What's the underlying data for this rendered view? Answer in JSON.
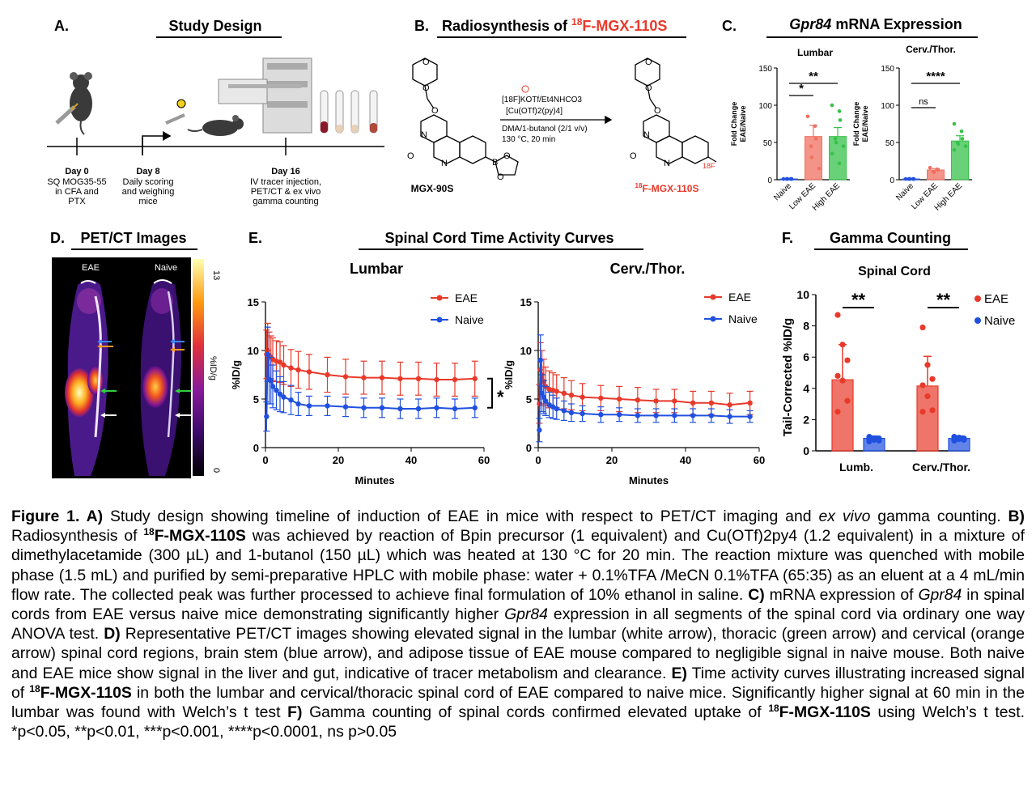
{
  "panelA": {
    "letter": "A.",
    "title": "Study Design",
    "day0": {
      "title": "Day 0",
      "lines": [
        "SQ MOG35-55",
        "in CFA and",
        "PTX"
      ]
    },
    "day8": {
      "title": "Day 8",
      "lines": [
        "Daily scoring",
        "and weighing",
        "mice"
      ]
    },
    "day16": {
      "title": "Day 16",
      "lines": [
        "IV tracer injection,",
        "PET/CT & ex vivo",
        "gamma counting"
      ]
    }
  },
  "panelB": {
    "letter": "B.",
    "title_prefix": "Radiosynthesis of ",
    "title_iso": "18",
    "title_suffix": "F-MGX-110S",
    "reagents_line1": "[18F]KOTf/Et4NHCO3",
    "reagents_line2": "[Cu(OTf)2(py)4]",
    "conditions_line1": "DMA/1-butanol (2/1 v/v)",
    "conditions_line2": "130 °C, 20 min",
    "precursor_label": "MGX-90S",
    "product_label": "F-MGX-110S",
    "product_iso": "18",
    "fluoro_label": "18F"
  },
  "panelC": {
    "letter": "C.",
    "title_gene": "Gpr84",
    "title_rest": " mRNA Expression",
    "ylabel_1": "Fold Change",
    "ylabel_2": "EAE/Naive",
    "yticks": [
      "0",
      "50",
      "100",
      "150"
    ],
    "categories": [
      "Naive",
      "Low EAE",
      "High EAE"
    ],
    "lumbar": {
      "subtitle": "Lumbar",
      "sig1": "*",
      "sig2": "**"
    },
    "cerv": {
      "subtitle": "Cerv./Thor.",
      "sig1": "ns",
      "sig2": "****"
    }
  },
  "panelD": {
    "letter": "D.",
    "title": "PET/CT Images",
    "label_eae": "EAE",
    "label_naive": "Naive",
    "scale_max": "13",
    "scale_min": "0",
    "scale_unit": "%ID/g"
  },
  "panelE": {
    "letter": "E.",
    "title": "Spinal Cord Time Activity Curves",
    "xlabel": "Minutes",
    "ylabel": "%ID/g",
    "xticks": [
      "0",
      "20",
      "40",
      "60"
    ],
    "yticks": [
      "0",
      "5",
      "10",
      "15"
    ],
    "legend_eae": "EAE",
    "legend_naive": "Naive",
    "lumbar_title": "Lumbar",
    "cerv_title": "Cerv./Thor.",
    "sig": "*"
  },
  "panelF": {
    "letter": "F.",
    "title": "Gamma Counting",
    "subtitle": "Spinal Cord",
    "ylabel": "Tail-Corrected %ID/g",
    "yticks": [
      "0",
      "2",
      "4",
      "6",
      "8",
      "10"
    ],
    "categories": [
      "Lumb.",
      "Cerv./Thor."
    ],
    "legend_eae": "EAE",
    "legend_naive": "Naive",
    "sig1": "**",
    "sig2": "**"
  },
  "colors": {
    "eae": "#e8392a",
    "naive": "#2050e0",
    "high_eae": "#37c24a",
    "low_eae": "#f07060"
  },
  "chart_data": [
    {
      "type": "bar",
      "panel": "C-lumbar",
      "title": "Lumbar",
      "ylabel": "Fold Change EAE/Naive",
      "categories": [
        "Naive",
        "Low EAE",
        "High EAE"
      ],
      "values": [
        1,
        58,
        58
      ],
      "errors": [
        0.5,
        15,
        12
      ],
      "ylim": [
        0,
        150
      ],
      "points": [
        [
          1,
          1,
          1,
          1,
          1
        ],
        [
          85,
          72,
          55,
          45,
          30,
          15
        ],
        [
          100,
          92,
          80,
          55,
          50,
          45,
          35,
          22
        ]
      ]
    },
    {
      "type": "bar",
      "panel": "C-cerv",
      "title": "Cerv./Thor.",
      "ylabel": "Fold Change EAE/Naive",
      "categories": [
        "Naive",
        "Low EAE",
        "High EAE"
      ],
      "values": [
        1,
        13,
        52
      ],
      "errors": [
        0.5,
        2,
        7
      ],
      "ylim": [
        0,
        150
      ],
      "points": [
        [
          1,
          1,
          1,
          1,
          1
        ],
        [
          16,
          14,
          13,
          11,
          10
        ],
        [
          75,
          65,
          55,
          50,
          48,
          45,
          40
        ]
      ]
    },
    {
      "type": "line",
      "panel": "E-lumbar",
      "title": "Lumbar",
      "xlabel": "Minutes",
      "ylabel": "%ID/g",
      "xlim": [
        0,
        60
      ],
      "ylim": [
        0,
        15
      ],
      "series": [
        {
          "name": "EAE",
          "x": [
            0.3,
            0.6,
            1,
            1.5,
            2,
            3,
            4,
            5,
            7,
            9,
            12,
            17,
            22,
            27,
            32,
            37,
            42,
            47,
            52,
            57.5
          ],
          "y": [
            9.6,
            10.0,
            9.5,
            9.3,
            9.1,
            8.9,
            8.8,
            8.5,
            8.2,
            8.0,
            7.8,
            7.5,
            7.3,
            7.2,
            7.2,
            7.1,
            7.1,
            7.0,
            7.0,
            7.1
          ],
          "err": [
            2.5,
            2.8,
            2.4,
            2.2,
            2.2,
            2.1,
            2.1,
            2.0,
            1.9,
            1.9,
            1.8,
            1.8,
            1.8,
            1.7,
            1.7,
            1.7,
            1.7,
            1.7,
            1.7,
            1.8
          ]
        },
        {
          "name": "Naive",
          "x": [
            0.3,
            0.6,
            1,
            1.5,
            2,
            3,
            4,
            5,
            7,
            9,
            12,
            17,
            22,
            27,
            32,
            37,
            42,
            47,
            52,
            57.5
          ],
          "y": [
            3.2,
            9.6,
            7.0,
            6.9,
            6.3,
            5.9,
            5.5,
            5.2,
            4.9,
            4.5,
            4.3,
            4.3,
            4.2,
            4.1,
            4.1,
            4.0,
            4.0,
            4.1,
            4.0,
            4.1
          ],
          "err": [
            1.5,
            2.8,
            2.5,
            2.4,
            2.2,
            2.0,
            1.8,
            1.6,
            1.5,
            1.2,
            1.0,
            1.0,
            1.0,
            1.0,
            1.0,
            1.0,
            1.0,
            1.0,
            1.0,
            1.0
          ]
        }
      ]
    },
    {
      "type": "line",
      "panel": "E-cerv",
      "title": "Cerv./Thor.",
      "xlabel": "Minutes",
      "ylabel": "%ID/g",
      "xlim": [
        0,
        60
      ],
      "ylim": [
        0,
        15
      ],
      "series": [
        {
          "name": "EAE",
          "x": [
            0.3,
            0.6,
            1,
            1.5,
            2,
            3,
            4,
            5,
            7,
            9,
            12,
            17,
            22,
            27,
            32,
            37,
            42,
            47,
            52,
            57.5
          ],
          "y": [
            4.5,
            8.0,
            7.5,
            6.8,
            6.3,
            6.0,
            5.9,
            5.8,
            5.6,
            5.4,
            5.2,
            5.1,
            5.0,
            4.9,
            4.8,
            4.8,
            4.6,
            4.6,
            4.4,
            4.6
          ],
          "err": [
            2.0,
            2.8,
            2.5,
            2.3,
            2.0,
            1.9,
            1.8,
            1.7,
            1.6,
            1.5,
            1.4,
            1.3,
            1.3,
            1.3,
            1.2,
            1.2,
            1.2,
            1.2,
            1.2,
            1.2
          ]
        },
        {
          "name": "Naive",
          "x": [
            0.3,
            0.6,
            1,
            1.5,
            2,
            3,
            4,
            5,
            7,
            9,
            12,
            17,
            22,
            27,
            32,
            37,
            42,
            47,
            52,
            57.5
          ],
          "y": [
            1.8,
            9.0,
            5.6,
            5.2,
            4.8,
            4.4,
            4.2,
            4.0,
            3.8,
            3.6,
            3.5,
            3.4,
            3.4,
            3.3,
            3.3,
            3.3,
            3.3,
            3.3,
            3.2,
            3.2
          ],
          "err": [
            1.2,
            2.6,
            1.9,
            1.7,
            1.5,
            1.3,
            1.2,
            1.1,
            1.0,
            0.9,
            0.8,
            0.8,
            0.7,
            0.7,
            0.7,
            0.7,
            0.7,
            0.7,
            0.7,
            0.6
          ]
        }
      ]
    },
    {
      "type": "bar",
      "panel": "F",
      "title": "Spinal Cord",
      "ylabel": "Tail-Corrected %ID/g",
      "categories": [
        "Lumb.",
        "Cerv./Thor."
      ],
      "ylim": [
        0,
        10
      ],
      "series": [
        {
          "name": "EAE",
          "values": [
            4.55,
            4.15
          ],
          "errors": [
            2.25,
            1.9
          ],
          "points": [
            [
              8.7,
              6.8,
              5.8,
              4.8,
              4.5,
              3.2,
              2.5
            ],
            [
              7.9,
              5.5,
              4.6,
              4.2,
              3.5,
              2.6,
              2.5
            ]
          ]
        },
        {
          "name": "Naive",
          "values": [
            0.8,
            0.8
          ],
          "errors": [
            0.15,
            0.15
          ],
          "points": [
            [
              0.9,
              0.8,
              0.8,
              0.75,
              0.7,
              0.65,
              0.6
            ],
            [
              0.9,
              0.85,
              0.8,
              0.8,
              0.75,
              0.7,
              0.65
            ]
          ]
        }
      ]
    }
  ],
  "caption": {
    "s1b": "Figure 1. A)",
    "s2": " Study design showing timeline of induction of EAE in mice with respect to PET/CT imaging and ",
    "s3i": "ex vivo",
    "s4": " gamma counting. ",
    "s5b": "B)",
    "s6": " Radiosynthesis of ",
    "s7sup": "18",
    "s8b": "F-MGX-110S",
    "s9": " was achieved by reaction of Bpin precursor (1 equivalent) and Cu(OTf)2py4 (1.2 equivalent) in a mixture of dimethylacetamide (300 µL) and 1-butanol (150 µL) which was heated at 130 °C for 20 min. The reaction mixture was quenched with mobile phase (1.5 mL) and purified by semi-preparative HPLC with mobile phase: water + 0.1%TFA /MeCN 0.1%TFA (65:35) as an eluent at a 4 mL/min flow rate. The collected peak was further processed to achieve final formulation of 10% ethanol in saline.  ",
    "s10b": "C)",
    "s11": " mRNA expression of ",
    "s12i": "Gpr84",
    "s13": " in spinal cords from EAE versus naive mice demonstrating significantly higher ",
    "s14i": "Gpr84",
    "s15": " expression in all segments of the spinal cord via ordinary one way ANOVA test. ",
    "s16b": "D)",
    "s17": " Representative PET/CT images showing elevated signal in the lumbar (white arrow), thoracic (green arrow) and cervical (orange arrow) spinal cord regions, brain stem (blue arrow), and adipose tissue of EAE mouse compared to negligible signal in naive mouse. Both naive and EAE mice show signal in the liver and gut, indicative of tracer metabolism and clearance. ",
    "s18b": "E)",
    "s19": " Time activity curves illustrating increased signal of ",
    "s20sup": "18",
    "s21b": "F-MGX-110S",
    "s22": " in both the lumbar and cervical/thoracic spinal cord of EAE compared to naive mice. Significantly higher signal at 60 min in the lumbar was found with Welch’s t test ",
    "s23b": "F)",
    "s24": " Gamma counting of spinal cords confirmed elevated uptake of ",
    "s25sup": "18",
    "s26b": "F-MGX-110S",
    "s27": " using Welch’s t test. *p<0.05, **p<0.01, ***p<0.001, ****p<0.0001, ns p>0.05"
  }
}
